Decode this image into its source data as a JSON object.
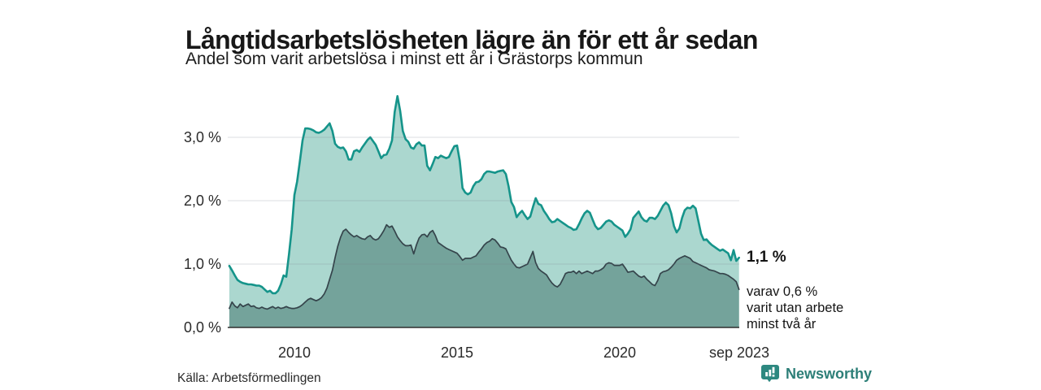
{
  "header": {
    "title": "Långtidsarbetslösheten lägre än för ett år sedan",
    "subtitle": "Andel som varit arbetslösa i minst ett år i Grästorps kommun"
  },
  "chart_data": {
    "type": "area",
    "x_unit": "month",
    "x_start": "2008-01",
    "x_end": "2023-09",
    "x_ticks": [
      "2010",
      "2015",
      "2020",
      "sep 2023"
    ],
    "x_tick_years": [
      2010,
      2015,
      2020,
      2023.67
    ],
    "y_ticks": [
      "0,0 %",
      "1,0 %",
      "2,0 %",
      "3,0 %"
    ],
    "y_tick_values": [
      0,
      1,
      2,
      3
    ],
    "ylim": [
      0,
      3.75
    ],
    "grid": "horizontal",
    "legend": "none",
    "series": [
      {
        "name": "Arbetslösa minst ett år",
        "color": "#15948a",
        "fill": "#abd7cf",
        "line_width": 2.6,
        "end_label": "1,1 %",
        "values": [
          0.97,
          0.9,
          0.82,
          0.75,
          0.72,
          0.7,
          0.69,
          0.68,
          0.68,
          0.67,
          0.66,
          0.66,
          0.64,
          0.6,
          0.56,
          0.58,
          0.54,
          0.54,
          0.58,
          0.68,
          0.82,
          0.8,
          1.15,
          1.55,
          2.09,
          2.3,
          2.62,
          2.95,
          3.14,
          3.14,
          3.13,
          3.11,
          3.08,
          3.07,
          3.09,
          3.12,
          3.17,
          3.22,
          3.1,
          2.9,
          2.85,
          2.83,
          2.84,
          2.78,
          2.65,
          2.65,
          2.78,
          2.8,
          2.77,
          2.84,
          2.9,
          2.96,
          3.0,
          2.94,
          2.88,
          2.78,
          2.67,
          2.72,
          2.73,
          2.82,
          2.95,
          3.4,
          3.65,
          3.42,
          3.1,
          2.97,
          2.93,
          2.84,
          2.82,
          2.89,
          2.92,
          2.87,
          2.87,
          2.55,
          2.48,
          2.58,
          2.69,
          2.67,
          2.71,
          2.69,
          2.67,
          2.69,
          2.78,
          2.86,
          2.87,
          2.63,
          2.2,
          2.13,
          2.1,
          2.13,
          2.23,
          2.29,
          2.3,
          2.34,
          2.42,
          2.46,
          2.46,
          2.45,
          2.44,
          2.46,
          2.47,
          2.48,
          2.42,
          2.23,
          1.98,
          1.9,
          1.74,
          1.8,
          1.84,
          1.77,
          1.71,
          1.75,
          1.9,
          2.04,
          1.95,
          1.93,
          1.84,
          1.78,
          1.71,
          1.66,
          1.67,
          1.71,
          1.68,
          1.65,
          1.62,
          1.59,
          1.57,
          1.54,
          1.55,
          1.63,
          1.72,
          1.8,
          1.84,
          1.81,
          1.7,
          1.6,
          1.55,
          1.57,
          1.62,
          1.67,
          1.69,
          1.67,
          1.62,
          1.59,
          1.56,
          1.53,
          1.43,
          1.48,
          1.55,
          1.73,
          1.78,
          1.83,
          1.74,
          1.69,
          1.67,
          1.73,
          1.73,
          1.71,
          1.76,
          1.84,
          1.92,
          1.97,
          1.93,
          1.8,
          1.6,
          1.5,
          1.56,
          1.73,
          1.85,
          1.89,
          1.88,
          1.92,
          1.88,
          1.68,
          1.48,
          1.38,
          1.39,
          1.34,
          1.3,
          1.27,
          1.24,
          1.21,
          1.23,
          1.2,
          1.17,
          1.06,
          1.22,
          1.05,
          1.1
        ]
      },
      {
        "name": "Arbetslösa minst två år",
        "color": "#35444b",
        "fill": "#74a39b",
        "line_width": 1.7,
        "end_label": "0,6 %",
        "values": [
          0.3,
          0.4,
          0.34,
          0.31,
          0.37,
          0.33,
          0.35,
          0.37,
          0.33,
          0.34,
          0.31,
          0.3,
          0.32,
          0.3,
          0.29,
          0.31,
          0.33,
          0.3,
          0.32,
          0.3,
          0.31,
          0.33,
          0.31,
          0.3,
          0.3,
          0.31,
          0.33,
          0.36,
          0.4,
          0.44,
          0.46,
          0.44,
          0.42,
          0.44,
          0.47,
          0.53,
          0.62,
          0.76,
          0.9,
          1.1,
          1.28,
          1.42,
          1.52,
          1.55,
          1.5,
          1.46,
          1.43,
          1.45,
          1.42,
          1.4,
          1.39,
          1.43,
          1.45,
          1.4,
          1.38,
          1.4,
          1.46,
          1.53,
          1.62,
          1.58,
          1.6,
          1.52,
          1.43,
          1.37,
          1.32,
          1.29,
          1.29,
          1.3,
          1.16,
          1.3,
          1.41,
          1.46,
          1.47,
          1.43,
          1.5,
          1.53,
          1.45,
          1.34,
          1.31,
          1.28,
          1.25,
          1.23,
          1.21,
          1.19,
          1.17,
          1.12,
          1.06,
          1.09,
          1.09,
          1.09,
          1.11,
          1.13,
          1.19,
          1.24,
          1.3,
          1.34,
          1.36,
          1.4,
          1.38,
          1.33,
          1.27,
          1.26,
          1.24,
          1.15,
          1.06,
          1.0,
          0.95,
          0.94,
          0.96,
          0.98,
          1.0,
          1.1,
          1.2,
          1.02,
          0.93,
          0.89,
          0.86,
          0.83,
          0.76,
          0.7,
          0.66,
          0.64,
          0.68,
          0.76,
          0.85,
          0.87,
          0.87,
          0.89,
          0.85,
          0.89,
          0.85,
          0.87,
          0.89,
          0.87,
          0.85,
          0.89,
          0.89,
          0.91,
          0.94,
          1.0,
          1.02,
          1.01,
          0.98,
          0.98,
          0.98,
          1.0,
          0.94,
          0.87,
          0.88,
          0.89,
          0.85,
          0.81,
          0.79,
          0.81,
          0.76,
          0.72,
          0.68,
          0.66,
          0.74,
          0.85,
          0.88,
          0.89,
          0.91,
          0.95,
          1.0,
          1.06,
          1.09,
          1.11,
          1.13,
          1.11,
          1.09,
          1.04,
          1.02,
          1.0,
          0.98,
          0.96,
          0.94,
          0.91,
          0.9,
          0.89,
          0.87,
          0.85,
          0.85,
          0.84,
          0.82,
          0.79,
          0.76,
          0.72,
          0.6
        ]
      }
    ]
  },
  "annotations": {
    "end_value": "1,1 %",
    "sub_lines": [
      "varav 0,6 %",
      "varit utan arbete",
      "minst två år"
    ]
  },
  "source": {
    "label": "Källa: Arbetsförmedlingen"
  },
  "branding": {
    "name": "Newsworthy"
  },
  "colors": {
    "accent_teal": "#15948a",
    "fill_light": "#abd7cf",
    "fill_dark": "#74a39b",
    "line_dark": "#35444b",
    "brand": "#2d7f78",
    "grid": "#e4e7ea",
    "axis": "#2e2e2e",
    "text": "#1a1a1a"
  }
}
